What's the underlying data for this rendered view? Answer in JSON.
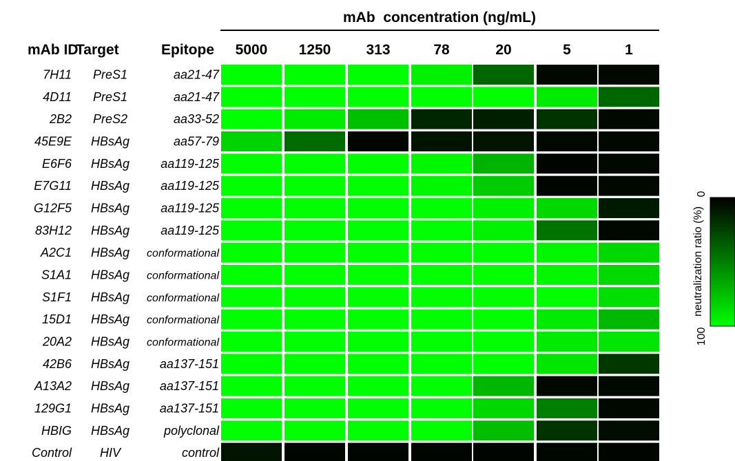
{
  "chart_data": {
    "type": "heatmap",
    "header_title": "mAb  concentration (ng/mL)",
    "row_headers": {
      "id": "mAb ID",
      "target": "Target",
      "epitope": "Epitope"
    },
    "columns": [
      "5000",
      "1250",
      "313",
      "78",
      "20",
      "5",
      "1"
    ],
    "rows": [
      {
        "id": "7H11",
        "target": "PreS1",
        "epitope": "aa21-47",
        "values": [
          100,
          100,
          100,
          95,
          40,
          3,
          3
        ]
      },
      {
        "id": "4D11",
        "target": "PreS1",
        "epitope": "aa21-47",
        "values": [
          100,
          100,
          100,
          100,
          100,
          92,
          40
        ]
      },
      {
        "id": "2B2",
        "target": "PreS2",
        "epitope": "aa33-52",
        "values": [
          100,
          93,
          75,
          15,
          12,
          20,
          3
        ]
      },
      {
        "id": "45E9E",
        "target": "HBsAg",
        "epitope": "aa57-79",
        "values": [
          83,
          42,
          2,
          8,
          8,
          3,
          3
        ]
      },
      {
        "id": "E6F6",
        "target": "HBsAg",
        "epitope": "aa119-125",
        "values": [
          100,
          100,
          100,
          97,
          70,
          2,
          3
        ]
      },
      {
        "id": "E7G11",
        "target": "HBsAg",
        "epitope": "aa119-125",
        "values": [
          100,
          100,
          100,
          97,
          80,
          2,
          3
        ]
      },
      {
        "id": "G12F5",
        "target": "HBsAg",
        "epitope": "aa119-125",
        "values": [
          100,
          100,
          100,
          100,
          95,
          85,
          10
        ]
      },
      {
        "id": "83H12",
        "target": "HBsAg",
        "epitope": "aa119-125",
        "values": [
          100,
          100,
          100,
          100,
          95,
          45,
          3
        ]
      },
      {
        "id": "A2C1",
        "target": "HBsAg",
        "epitope": "conformational",
        "values": [
          100,
          100,
          100,
          100,
          100,
          97,
          85
        ]
      },
      {
        "id": "S1A1",
        "target": "HBsAg",
        "epitope": "conformational",
        "values": [
          100,
          100,
          100,
          100,
          100,
          97,
          85
        ]
      },
      {
        "id": "S1F1",
        "target": "HBsAg",
        "epitope": "conformational",
        "values": [
          100,
          100,
          100,
          100,
          100,
          100,
          88
        ]
      },
      {
        "id": "15D1",
        "target": "HBsAg",
        "epitope": "conformational",
        "values": [
          100,
          100,
          100,
          100,
          100,
          92,
          72
        ]
      },
      {
        "id": "20A2",
        "target": "HBsAg",
        "epitope": "conformational",
        "values": [
          100,
          100,
          100,
          100,
          100,
          92,
          90
        ]
      },
      {
        "id": "42B6",
        "target": "HBsAg",
        "epitope": "aa137-151",
        "values": [
          100,
          100,
          100,
          100,
          100,
          90,
          22
        ]
      },
      {
        "id": "A13A2",
        "target": "HBsAg",
        "epitope": "aa137-151",
        "values": [
          100,
          100,
          100,
          100,
          72,
          3,
          3
        ]
      },
      {
        "id": "129G1",
        "target": "HBsAg",
        "epitope": "aa137-151",
        "values": [
          100,
          100,
          100,
          100,
          85,
          50,
          3
        ]
      },
      {
        "id": "HBIG",
        "target": "HBsAg",
        "epitope": "polyclonal",
        "values": [
          100,
          100,
          100,
          100,
          75,
          20,
          5
        ]
      },
      {
        "id": "Control",
        "target": "HIV",
        "epitope": "control",
        "values": [
          8,
          2,
          2,
          2,
          2,
          2,
          2
        ]
      }
    ],
    "colorbar": {
      "label": "neutralization ratio (%)",
      "min_label": "0",
      "max_label": "100",
      "min": 0,
      "max": 100,
      "low_color": "#000000",
      "high_color": "#00ff00"
    }
  }
}
